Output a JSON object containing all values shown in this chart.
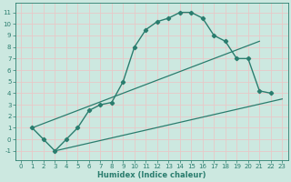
{
  "bg_color": "#cce8e0",
  "grid_color": "#e8c8c8",
  "line_color": "#2a7d6e",
  "xlabel": "Humidex (Indice chaleur)",
  "xlim": [
    -0.5,
    23.5
  ],
  "ylim": [
    -1.8,
    11.8
  ],
  "xticks": [
    0,
    1,
    2,
    3,
    4,
    5,
    6,
    7,
    8,
    9,
    10,
    11,
    12,
    13,
    14,
    15,
    16,
    17,
    18,
    19,
    20,
    21,
    22,
    23
  ],
  "yticks": [
    -1,
    0,
    1,
    2,
    3,
    4,
    5,
    6,
    7,
    8,
    9,
    10,
    11
  ],
  "curve1_x": [
    1,
    2,
    3,
    4,
    5,
    6,
    7,
    8,
    9,
    10,
    11,
    12,
    13,
    14,
    15,
    16,
    17,
    18,
    19,
    20,
    21,
    22
  ],
  "curve1_y": [
    1,
    0,
    -1,
    0,
    1,
    2.5,
    3,
    3.2,
    5,
    8,
    9.5,
    10.2,
    10.5,
    11,
    11,
    10.5,
    9,
    8.5,
    7,
    7,
    4.2,
    4
  ],
  "line2_x": [
    1,
    21
  ],
  "line2_y": [
    1,
    8.5
  ],
  "line3_x": [
    3,
    23
  ],
  "line3_y": [
    -1,
    3.5
  ],
  "xlabel_fontsize": 6,
  "tick_fontsize": 5,
  "lw_curve": 1.0,
  "lw_line": 0.9,
  "marker_size": 2.2
}
